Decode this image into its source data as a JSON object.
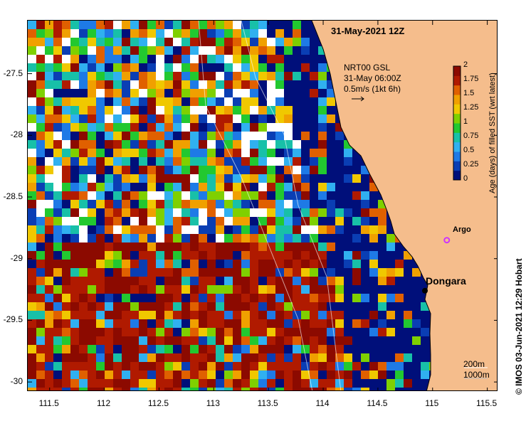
{
  "title": "31-May-2021 12Z",
  "current_info": {
    "line1": "NRT00 GSL",
    "line2": "31-May 06:00Z",
    "line3": "0.5m/s (1kt 6h)"
  },
  "station": {
    "name": "Dongara",
    "lon": 114.93,
    "lat": -29.26
  },
  "argo": {
    "label": "Argo",
    "lon": 115.13,
    "lat": -28.85,
    "color": "#cc33ff"
  },
  "isobaths": {
    "shallow": "200m",
    "deep": "1000m"
  },
  "credit": "© IMOS 03-Jun-2021 12:29 Hobart",
  "axes": {
    "x_ticks": [
      "111.5",
      "112",
      "112.5",
      "113",
      "113.5",
      "114",
      "114.5",
      "115",
      "115.5"
    ],
    "y_ticks": [
      "-27.5",
      "-28",
      "-28.5",
      "-29",
      "-29.5",
      "-30"
    ],
    "xlim": [
      111.3,
      115.6
    ],
    "ylim": [
      -30.08,
      -27.07
    ]
  },
  "colorbar": {
    "title": "Age (days) of filled SST (wrt latest)",
    "ticks": [
      "2",
      "1.75",
      "1.5",
      "1.25",
      "1",
      "0.75",
      "0.5",
      "0.25",
      "0"
    ],
    "colors": [
      "#000f7a",
      "#0a3eb4",
      "#1e7ae6",
      "#30b0f0",
      "#18c0a8",
      "#22c830",
      "#7fd000",
      "#f0c800",
      "#f0a000",
      "#e06000",
      "#b01a00",
      "#8c0a00"
    ]
  },
  "land_color": "#f5bd8c"
}
